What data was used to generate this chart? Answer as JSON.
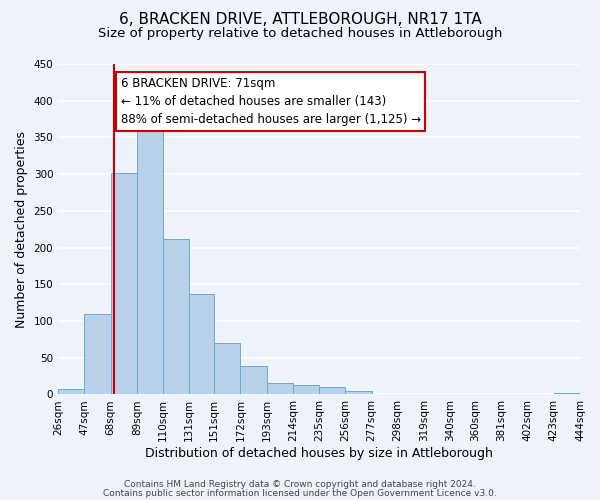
{
  "title": "6, BRACKEN DRIVE, ATTLEBOROUGH, NR17 1TA",
  "subtitle": "Size of property relative to detached houses in Attleborough",
  "xlabel": "Distribution of detached houses by size in Attleborough",
  "ylabel": "Number of detached properties",
  "bin_edges": [
    26,
    47,
    68,
    89,
    110,
    131,
    151,
    172,
    193,
    214,
    235,
    256,
    277,
    298,
    319,
    340,
    360,
    381,
    402,
    423,
    444
  ],
  "bar_heights": [
    8,
    109,
    302,
    360,
    212,
    137,
    70,
    39,
    16,
    13,
    10,
    5,
    0,
    0,
    0,
    0,
    0,
    0,
    0,
    2
  ],
  "bar_color": "#b8d0ea",
  "bar_edge_color": "#6aaad4",
  "vline_x": 71,
  "vline_color": "#cc0000",
  "annotation_text": "6 BRACKEN DRIVE: 71sqm\n← 11% of detached houses are smaller (143)\n88% of semi-detached houses are larger (1,125) →",
  "annotation_box_color": "#ffffff",
  "annotation_box_edge_color": "#cc0000",
  "ylim": [
    0,
    450
  ],
  "tick_labels": [
    "26sqm",
    "47sqm",
    "68sqm",
    "89sqm",
    "110sqm",
    "131sqm",
    "151sqm",
    "172sqm",
    "193sqm",
    "214sqm",
    "235sqm",
    "256sqm",
    "277sqm",
    "298sqm",
    "319sqm",
    "340sqm",
    "360sqm",
    "381sqm",
    "402sqm",
    "423sqm",
    "444sqm"
  ],
  "footer_line1": "Contains HM Land Registry data © Crown copyright and database right 2024.",
  "footer_line2": "Contains public sector information licensed under the Open Government Licence v3.0.",
  "background_color": "#eef2fa",
  "grid_color": "#ffffff",
  "title_fontsize": 11,
  "subtitle_fontsize": 9.5,
  "axis_label_fontsize": 9,
  "tick_fontsize": 7.5,
  "footer_fontsize": 6.5,
  "annotation_fontsize": 8.5
}
